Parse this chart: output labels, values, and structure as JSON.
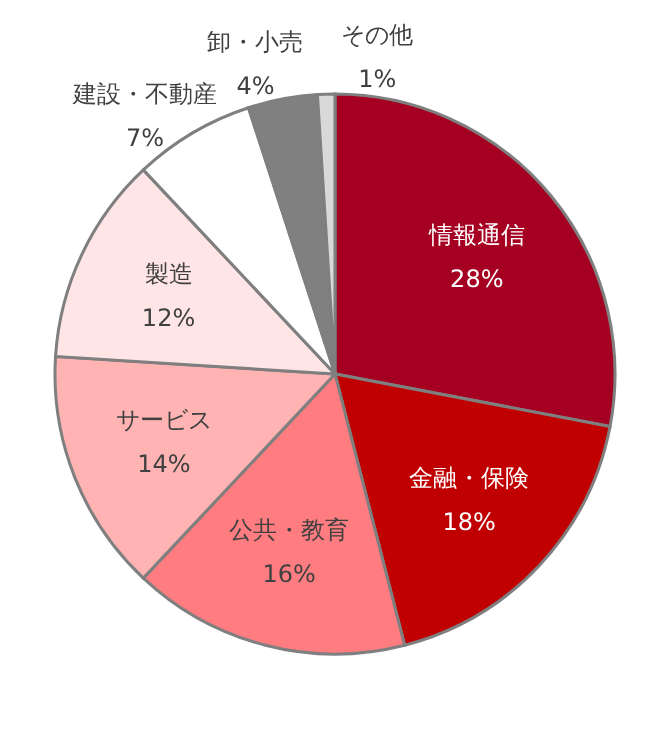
{
  "chart_data": {
    "type": "pie",
    "categories": [
      "情報通信",
      "金融・保険",
      "公共・教育",
      "サービス",
      "製造",
      "建設・不動産",
      "卸・小売",
      "その他"
    ],
    "values": [
      28,
      18,
      16,
      14,
      12,
      7,
      4,
      1
    ],
    "value_labels": [
      "28%",
      "18%",
      "16%",
      "14%",
      "12%",
      "7%",
      "4%",
      "1%"
    ],
    "colors": [
      "#a50021",
      "#c00000",
      "#ff7c80",
      "#ffb3b3",
      "#ffe5e5",
      "#ffffff",
      "#808080",
      "#d9d9d9"
    ]
  }
}
